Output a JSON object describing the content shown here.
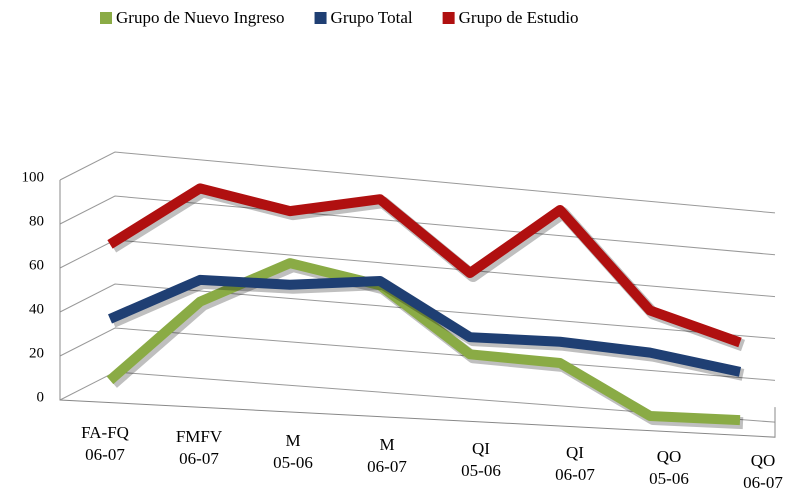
{
  "chart_data": {
    "type": "line3d",
    "categories": [
      "FA-FQ\n06-07",
      "FMFV\n06-07",
      "M\n05-06",
      "M\n06-07",
      "QI\n05-06",
      "QI\n06-07",
      "QO\n05-06",
      "QO\n06-07"
    ],
    "series": [
      {
        "name": "Grupo de Nuevo Ingreso",
        "color": "#8aab45",
        "values": [
          10,
          48,
          68,
          60,
          30,
          28,
          5,
          5
        ]
      },
      {
        "name": "Grupo Total",
        "color": "#1f3f73",
        "values": [
          38,
          58,
          58,
          62,
          38,
          38,
          35,
          28
        ]
      },
      {
        "name": "Grupo de Estudio",
        "color": "#b01010",
        "values": [
          72,
          100,
          92,
          100,
          68,
          100,
          55,
          42
        ]
      }
    ],
    "ylim": [
      0,
      100
    ],
    "yticks": [
      0,
      20,
      40,
      60,
      80,
      100
    ],
    "grid": true,
    "legend": "top"
  }
}
